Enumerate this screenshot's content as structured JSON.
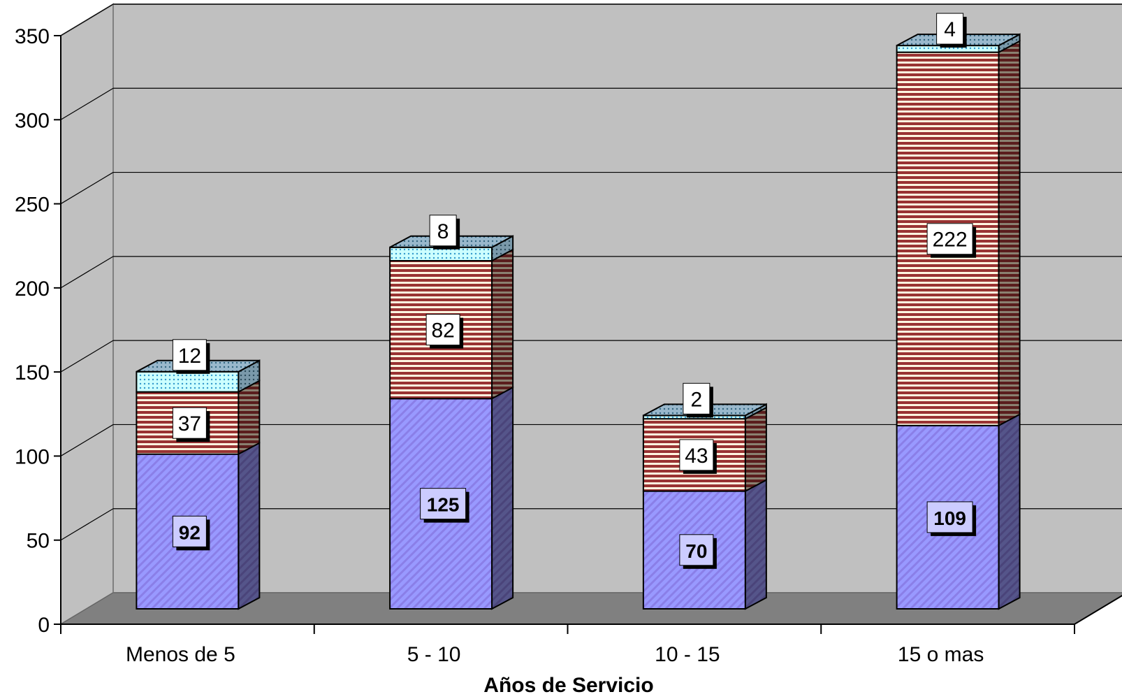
{
  "chart_data": {
    "type": "bar",
    "stacked": true,
    "three_d": true,
    "categories": [
      "Menos de 5",
      "5 - 10",
      "10 - 15",
      "15 o mas"
    ],
    "series": [
      {
        "values": [
          92,
          125,
          70,
          109
        ],
        "color": "#9999ff",
        "pattern": "diagonal-stripes",
        "label_bold": true,
        "label_bg": "#ccccff"
      },
      {
        "values": [
          37,
          82,
          43,
          222
        ],
        "color": "#993333",
        "pattern": "horizontal-stripes",
        "label_bold": false,
        "label_bg": "#ffffff"
      },
      {
        "values": [
          12,
          8,
          2,
          4
        ],
        "color": "#ccffff",
        "pattern": "dots",
        "label_bold": false,
        "label_bg": "#ffffff"
      }
    ],
    "title": "",
    "xlabel": "Años de Servicio",
    "ylabel": "",
    "ylim": [
      0,
      350
    ],
    "yticks": [
      0,
      50,
      100,
      150,
      200,
      250,
      300,
      350
    ],
    "grid": true,
    "legend": "none",
    "wall_color": "#c0c0c0",
    "floor_color": "#808080"
  }
}
